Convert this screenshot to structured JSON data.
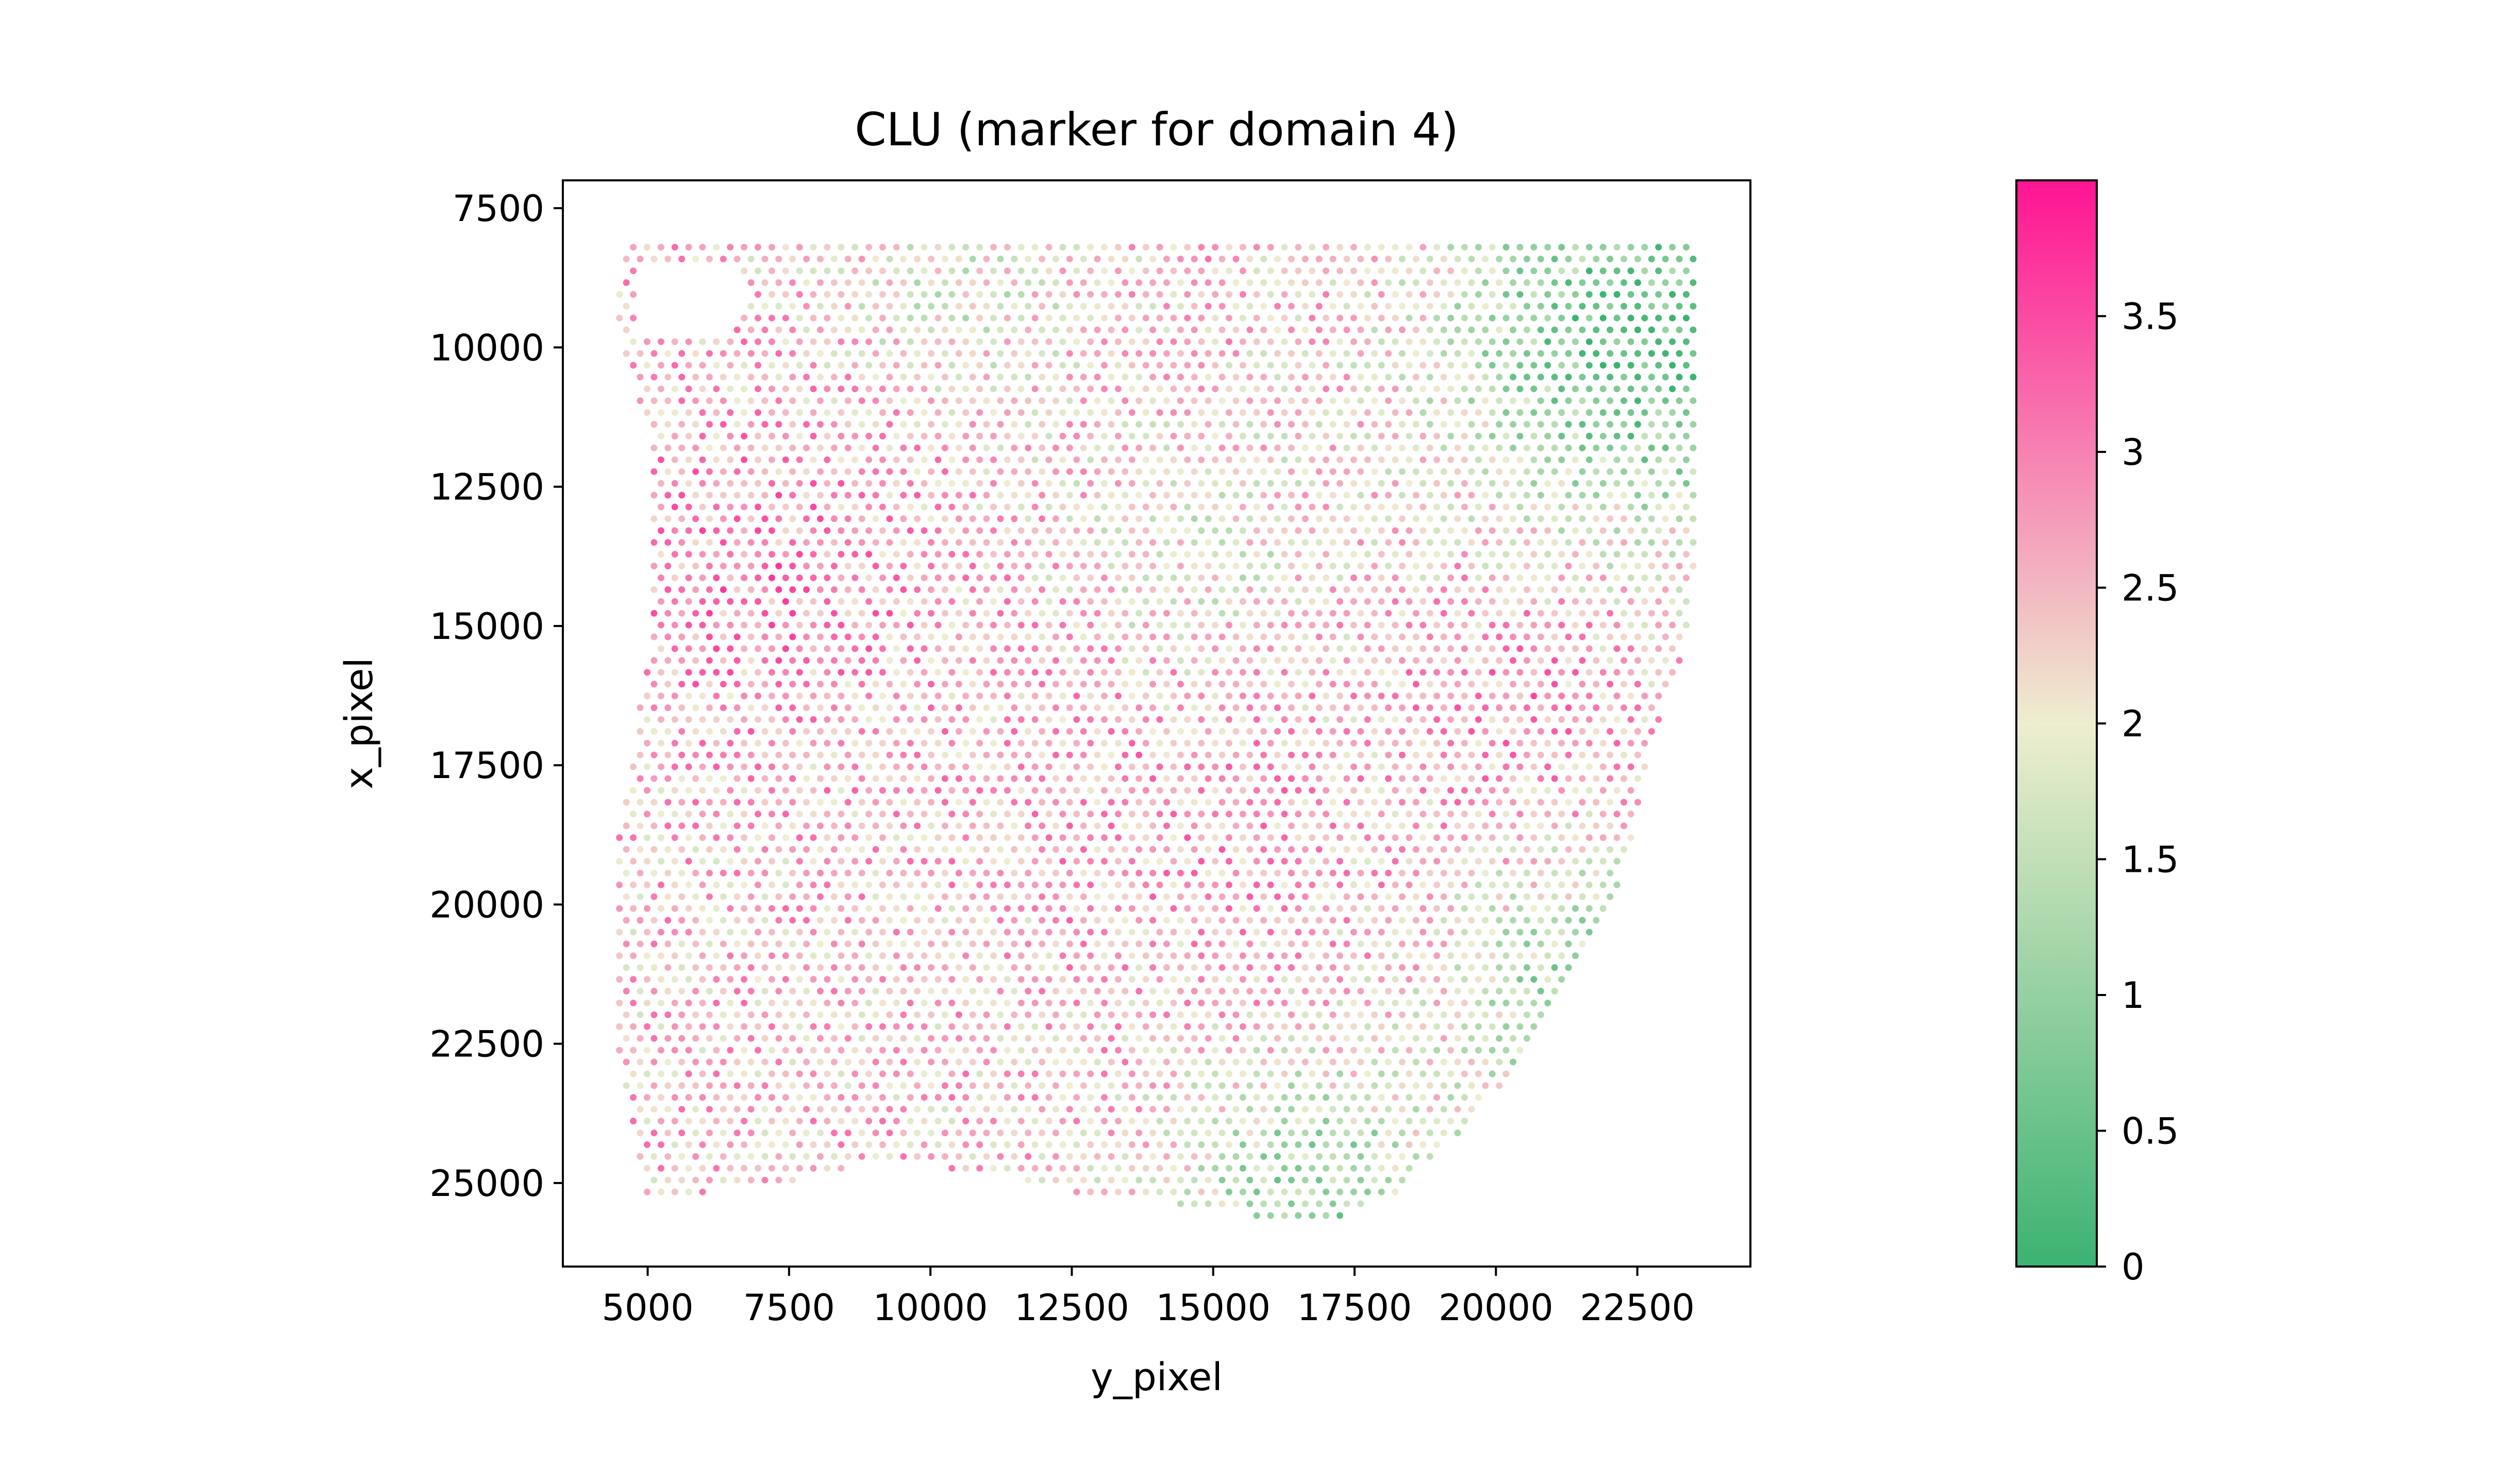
{
  "chart_data": {
    "type": "scatter",
    "title": "CLU (marker for domain 4)",
    "xlabel": "y_pixel",
    "ylabel": "x_pixel",
    "xlim": [
      3500,
      24500
    ],
    "ylim": [
      26500,
      7000
    ],
    "y_inverted": true,
    "grid": false,
    "x_ticks": [
      5000,
      7500,
      10000,
      12500,
      15000,
      17500,
      20000,
      22500
    ],
    "x_tick_labels": [
      "5000",
      "7500",
      "10000",
      "12500",
      "15000",
      "17500",
      "20000",
      "22500"
    ],
    "y_ticks": [
      7500,
      10000,
      12500,
      15000,
      17500,
      20000,
      22500,
      25000
    ],
    "y_tick_labels": [
      "7500",
      "10000",
      "12500",
      "15000",
      "17500",
      "20000",
      "22500",
      "25000"
    ],
    "colorbar": {
      "min": 0,
      "max": 4.0,
      "ticks": [
        0,
        0.5,
        1,
        1.5,
        2,
        2.5,
        3,
        3.5
      ],
      "tick_labels": [
        "0",
        "0.5",
        "1",
        "1.5",
        "2",
        "2.5",
        "3",
        "3.5"
      ],
      "colors": [
        "#3cb371",
        "#eeeed0",
        "#ff1493"
      ]
    },
    "spot_grid": {
      "x_start": 4500,
      "x_end": 23600,
      "y_start": 8200,
      "y_end": 25700,
      "x_step": 245,
      "y_step": 212
    },
    "regions": [
      {
        "region": "top-right",
        "x_range": [
          19000,
          23600
        ],
        "y_range": [
          8200,
          13500
        ],
        "mean_expression": 0.6
      },
      {
        "region": "right-edge",
        "x_range": [
          21000,
          23000
        ],
        "y_range": [
          19000,
          23500
        ],
        "mean_expression": 0.8
      },
      {
        "region": "bottom-center",
        "x_range": [
          14500,
          19500
        ],
        "y_range": [
          24500,
          25700
        ],
        "mean_expression": 0.7
      },
      {
        "region": "left-middle",
        "x_range": [
          5000,
          9000
        ],
        "y_range": [
          11000,
          18000
        ],
        "mean_expression": 2.7
      },
      {
        "region": "center",
        "x_range": [
          11000,
          18000
        ],
        "y_range": [
          15000,
          20000
        ],
        "mean_expression": 2.6
      },
      {
        "region": "right-middle",
        "x_range": [
          19000,
          22000
        ],
        "y_range": [
          14500,
          17500
        ],
        "mean_expression": 2.9
      }
    ]
  }
}
